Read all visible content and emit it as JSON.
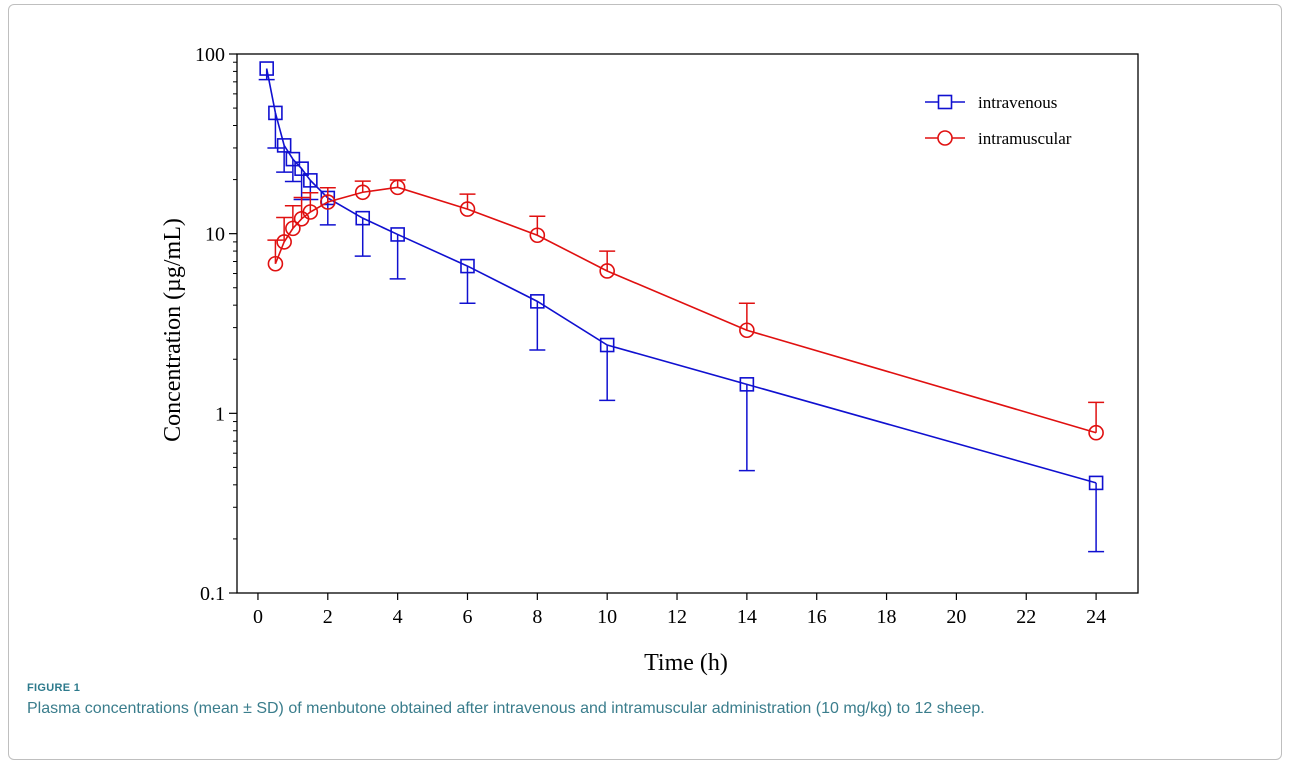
{
  "figure": {
    "label": "FIGURE 1",
    "caption": "Plasma concentrations (mean ± SD) of menbutone obtained after intravenous and intramuscular administration (10 mg/kg) to 12 sheep."
  },
  "chart_data": {
    "type": "line",
    "xlabel": "Time (h)",
    "ylabel": "Concentration (µg/mL)",
    "xlim": [
      -0.6,
      25.2
    ],
    "ylim": [
      0.1,
      100
    ],
    "yscale": "log",
    "xticks": [
      "0",
      "2",
      "4",
      "6",
      "8",
      "10",
      "12",
      "14",
      "16",
      "18",
      "20",
      "22",
      "24"
    ],
    "yticks": [
      "0.1",
      "1",
      "10",
      "100"
    ],
    "legend_position": "top-right",
    "grid": false,
    "series": [
      {
        "name": "intravenous",
        "color": "#1010d0",
        "marker": "square",
        "x": [
          0.25,
          0.5,
          0.75,
          1,
          1.25,
          1.5,
          2,
          3,
          4,
          6,
          8,
          10,
          14,
          24
        ],
        "y": [
          83,
          47,
          31,
          26,
          23,
          19.8,
          15.8,
          12.2,
          9.9,
          6.6,
          4.2,
          2.4,
          1.45,
          0.41
        ],
        "error_end": [
          72,
          30,
          22,
          19.5,
          15.5,
          15.5,
          11.2,
          7.5,
          5.6,
          4.1,
          2.25,
          1.18,
          0.48,
          0.17
        ]
      },
      {
        "name": "intramuscular",
        "color": "#e01010",
        "marker": "circle",
        "x": [
          0.5,
          0.75,
          1,
          1.25,
          1.5,
          2,
          3,
          4,
          6,
          8,
          10,
          14,
          24
        ],
        "y": [
          6.8,
          9.0,
          10.7,
          12.1,
          13.2,
          15.0,
          17.0,
          18.1,
          13.7,
          9.8,
          6.2,
          2.9,
          0.78
        ],
        "error_end": [
          9.2,
          12.3,
          14.3,
          15.9,
          16.9,
          18.0,
          19.6,
          19.9,
          16.6,
          12.5,
          8.0,
          4.1,
          1.15
        ]
      }
    ]
  }
}
